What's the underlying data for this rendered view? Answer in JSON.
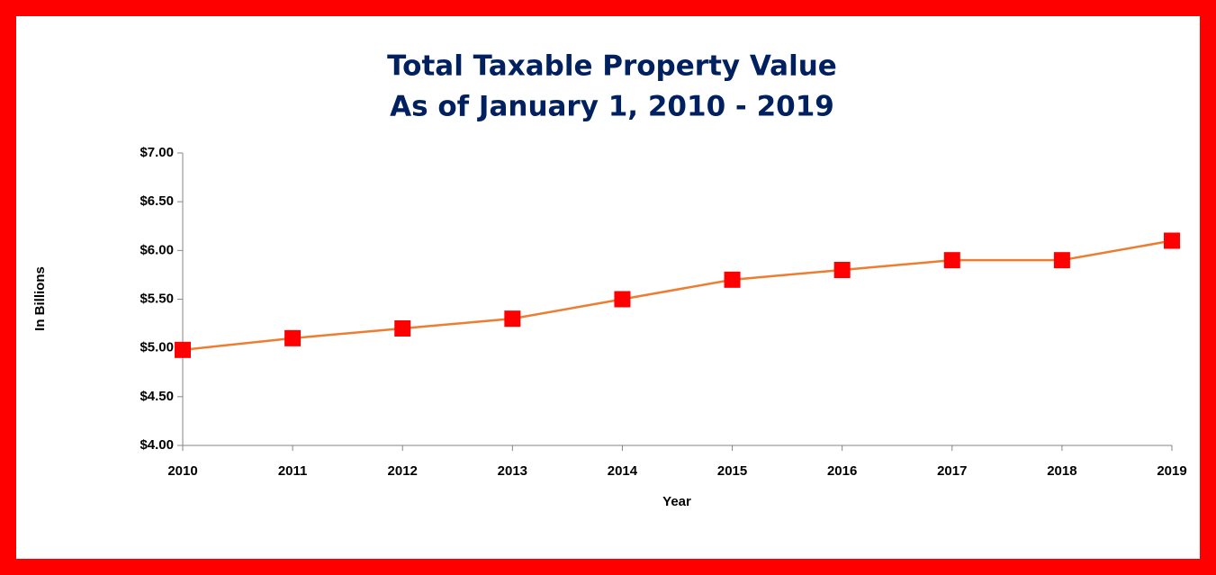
{
  "chart_data": {
    "type": "line",
    "title": "Total Taxable Property Value",
    "subtitle": "As of January 1, 2010 - 2019",
    "x_label": "Year",
    "y_label": "In Billions",
    "x": [
      2010,
      2011,
      2012,
      2013,
      2014,
      2015,
      2016,
      2017,
      2018,
      2019
    ],
    "xlim": [
      2010,
      2019
    ],
    "xticks": [
      2010,
      2011,
      2012,
      2013,
      2014,
      2015,
      2016,
      2017,
      2018,
      2019
    ],
    "series": [
      {
        "name": "Total Taxable Property Value",
        "color": "#ed7d31",
        "marker_color": "#ff0000",
        "values": [
          4.98,
          5.1,
          5.2,
          5.3,
          5.5,
          5.7,
          5.8,
          5.9,
          5.9,
          6.1
        ]
      }
    ],
    "ylim": [
      4,
      7
    ],
    "yticks": [
      {
        "value": 4,
        "label": "$4.00"
      },
      {
        "value": 4.5,
        "label": "$4.50"
      },
      {
        "value": 5,
        "label": "$5.00"
      },
      {
        "value": 5.5,
        "label": "$5.50"
      },
      {
        "value": 6,
        "label": "$6.00"
      },
      {
        "value": 6.5,
        "label": "$6.50"
      },
      {
        "value": 7,
        "label": "$7.00"
      }
    ],
    "grid": false
  }
}
